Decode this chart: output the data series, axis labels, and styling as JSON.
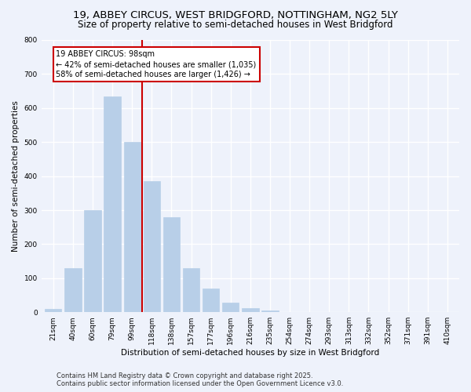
{
  "title1": "19, ABBEY CIRCUS, WEST BRIDGFORD, NOTTINGHAM, NG2 5LY",
  "title2": "Size of property relative to semi-detached houses in West Bridgford",
  "xlabel": "Distribution of semi-detached houses by size in West Bridgford",
  "ylabel": "Number of semi-detached properties",
  "categories": [
    "21sqm",
    "40sqm",
    "60sqm",
    "79sqm",
    "99sqm",
    "118sqm",
    "138sqm",
    "157sqm",
    "177sqm",
    "196sqm",
    "216sqm",
    "235sqm",
    "254sqm",
    "274sqm",
    "293sqm",
    "313sqm",
    "332sqm",
    "352sqm",
    "371sqm",
    "391sqm",
    "410sqm"
  ],
  "values": [
    10,
    130,
    300,
    635,
    500,
    385,
    280,
    130,
    70,
    28,
    12,
    5,
    0,
    0,
    0,
    0,
    0,
    0,
    0,
    0,
    0
  ],
  "bar_color": "#b8cfe8",
  "bar_edge_color": "#b8cfe8",
  "vline_x_index": 4,
  "vline_color": "#cc0000",
  "ylim": [
    0,
    800
  ],
  "yticks": [
    0,
    100,
    200,
    300,
    400,
    500,
    600,
    700,
    800
  ],
  "annotation_title": "19 ABBEY CIRCUS: 98sqm",
  "annotation_line1": "← 42% of semi-detached houses are smaller (1,035)",
  "annotation_line2": "58% of semi-detached houses are larger (1,426) →",
  "footer1": "Contains HM Land Registry data © Crown copyright and database right 2025.",
  "footer2": "Contains public sector information licensed under the Open Government Licence v3.0.",
  "bg_color": "#eef2fb",
  "plot_bg_color": "#eef2fb",
  "grid_color": "#ffffff",
  "title_fontsize": 9.5,
  "subtitle_fontsize": 8.5,
  "axis_label_fontsize": 7.5,
  "tick_fontsize": 6.5,
  "footer_fontsize": 6.0,
  "annotation_fontsize": 7.0
}
